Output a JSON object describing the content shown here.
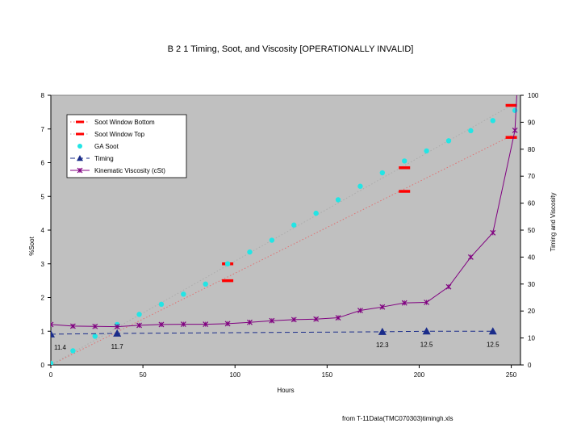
{
  "chart_data": {
    "type": "line",
    "title": "B 2 1 Timing, Soot, and Viscosity [OPERATIONALLY INVALID]",
    "xlabel": "Hours",
    "ylabel_left": "%Soot",
    "ylabel_right": "Timing and Viscosity",
    "xlim": [
      0,
      255
    ],
    "ylim_left": [
      0,
      8
    ],
    "ylim_right": [
      0,
      100
    ],
    "x_ticks": [
      0,
      50,
      100,
      150,
      200,
      250
    ],
    "y_ticks_left": [
      0,
      1,
      2,
      3,
      4,
      5,
      6,
      7,
      8
    ],
    "y_ticks_right": [
      0,
      10,
      20,
      30,
      40,
      50,
      60,
      70,
      80,
      90,
      100
    ],
    "grid": false,
    "legend_position": "top-left",
    "series": [
      {
        "name": "Soot Window Bottom",
        "axis": "left",
        "style": "dotted",
        "color": "#e07070",
        "x": [
          0,
          250
        ],
        "y": [
          0,
          6.8
        ],
        "markers": [
          {
            "x": 96,
            "y": 2.5
          },
          {
            "x": 192,
            "y": 5.15
          },
          {
            "x": 250,
            "y": 6.75
          }
        ],
        "marker_color": "#ff0000"
      },
      {
        "name": "Soot Window Top",
        "axis": "left",
        "style": "dotted",
        "color": "#aaaaaa",
        "x": [
          0,
          250
        ],
        "y": [
          0,
          7.7
        ],
        "markers": [
          {
            "x": 96,
            "y": 3.0
          },
          {
            "x": 192,
            "y": 5.85
          },
          {
            "x": 250,
            "y": 7.7
          }
        ],
        "marker_color": "#ff0000"
      },
      {
        "name": "GA Soot",
        "axis": "left",
        "style": "points",
        "color": "#22e5e5",
        "x": [
          0,
          12,
          24,
          36,
          48,
          60,
          72,
          84,
          96,
          108,
          120,
          132,
          144,
          156,
          168,
          180,
          192,
          204,
          216,
          228,
          240,
          252
        ],
        "y": [
          0.05,
          0.42,
          0.85,
          1.2,
          1.5,
          1.8,
          2.1,
          2.4,
          3.0,
          3.35,
          3.7,
          4.15,
          4.5,
          4.9,
          5.3,
          5.7,
          6.05,
          6.35,
          6.65,
          6.95,
          7.25,
          7.55
        ]
      },
      {
        "name": "Timing",
        "axis": "right",
        "style": "dashed",
        "color": "#1a2c8a",
        "x": [
          0,
          36,
          180,
          204,
          240
        ],
        "y": [
          11.4,
          11.7,
          12.3,
          12.5,
          12.5
        ]
      },
      {
        "name": "Kinematic Viscosity (cSt)",
        "axis": "right",
        "style": "solid",
        "color": "#800080",
        "x": [
          0,
          12,
          24,
          36,
          48,
          60,
          72,
          84,
          96,
          108,
          120,
          132,
          144,
          156,
          168,
          180,
          192,
          204,
          216,
          228,
          240,
          252,
          253
        ],
        "y": [
          15,
          14.4,
          14.3,
          14.2,
          14.7,
          15,
          15.1,
          15.1,
          15.3,
          15.8,
          16.4,
          16.8,
          17,
          17.5,
          20.2,
          21.5,
          23,
          23.2,
          29,
          40,
          49,
          87,
          100
        ]
      }
    ],
    "annotations": [
      {
        "text": "11.4",
        "x": 0,
        "axis": "right",
        "y": 11.4
      },
      {
        "text": "11.7",
        "x": 36,
        "axis": "right",
        "y": 11.7
      },
      {
        "text": "12.3",
        "x": 180,
        "axis": "right",
        "y": 12.3
      },
      {
        "text": "12.5",
        "x": 204,
        "axis": "right",
        "y": 12.5
      },
      {
        "text": "12.5",
        "x": 240,
        "axis": "right",
        "y": 12.5
      }
    ]
  },
  "colors": {
    "page_background": "#ffffff",
    "plot_background": "#c0c0c0",
    "legend_background": "#ffffff"
  },
  "footer": {
    "source_text": "from T-11Data(TMC070303)timingh.xls"
  }
}
